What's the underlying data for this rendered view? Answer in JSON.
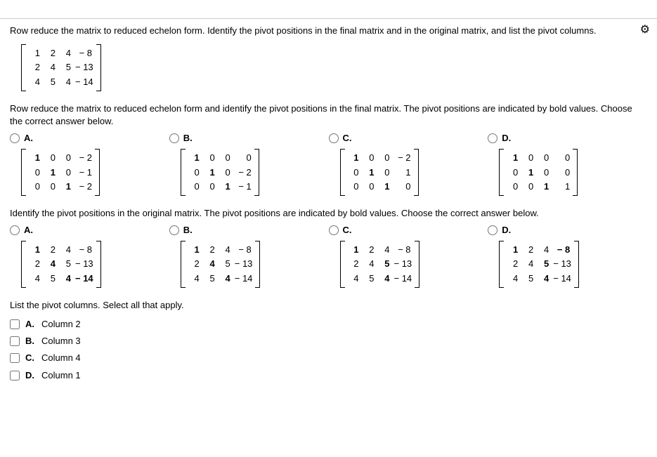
{
  "gear_icon": "⚙",
  "q1_text": "Row reduce the matrix to reduced echelon form. Identify the pivot positions in the final matrix and in the original matrix, and list the pivot columns.",
  "matrix_main": {
    "rows": [
      [
        "1",
        "2",
        "4",
        "− 8"
      ],
      [
        "2",
        "4",
        "5",
        "− 13"
      ],
      [
        "4",
        "5",
        "4",
        "− 14"
      ]
    ]
  },
  "q2_text": "Row reduce the matrix to reduced echelon form and identify the pivot positions in the final matrix. The pivot positions are indicated by bold values. Choose the correct answer below.",
  "opts1": {
    "A": {
      "label": "A.",
      "rows": [
        [
          {
            "v": "1",
            "b": 1
          },
          {
            "v": "0"
          },
          {
            "v": "0"
          },
          {
            "v": "− 2"
          }
        ],
        [
          {
            "v": "0"
          },
          {
            "v": "1",
            "b": 1
          },
          {
            "v": "0"
          },
          {
            "v": "− 1"
          }
        ],
        [
          {
            "v": "0"
          },
          {
            "v": "0"
          },
          {
            "v": "1",
            "b": 1
          },
          {
            "v": "− 2"
          }
        ]
      ]
    },
    "B": {
      "label": "B.",
      "rows": [
        [
          {
            "v": "1",
            "b": 1
          },
          {
            "v": "0"
          },
          {
            "v": "0"
          },
          {
            "v": "0"
          }
        ],
        [
          {
            "v": "0"
          },
          {
            "v": "1",
            "b": 1
          },
          {
            "v": "0"
          },
          {
            "v": "− 2"
          }
        ],
        [
          {
            "v": "0"
          },
          {
            "v": "0"
          },
          {
            "v": "1",
            "b": 1
          },
          {
            "v": "− 1"
          }
        ]
      ]
    },
    "C": {
      "label": "C.",
      "rows": [
        [
          {
            "v": "1",
            "b": 1
          },
          {
            "v": "0"
          },
          {
            "v": "0"
          },
          {
            "v": "− 2"
          }
        ],
        [
          {
            "v": "0"
          },
          {
            "v": "1",
            "b": 1
          },
          {
            "v": "0"
          },
          {
            "v": "1"
          }
        ],
        [
          {
            "v": "0"
          },
          {
            "v": "0"
          },
          {
            "v": "1",
            "b": 1
          },
          {
            "v": "0"
          }
        ]
      ]
    },
    "D": {
      "label": "D.",
      "rows": [
        [
          {
            "v": "1",
            "b": 1
          },
          {
            "v": "0"
          },
          {
            "v": "0"
          },
          {
            "v": "0"
          }
        ],
        [
          {
            "v": "0"
          },
          {
            "v": "1",
            "b": 1
          },
          {
            "v": "0"
          },
          {
            "v": "0"
          }
        ],
        [
          {
            "v": "0"
          },
          {
            "v": "0"
          },
          {
            "v": "1",
            "b": 1
          },
          {
            "v": "1"
          }
        ]
      ]
    }
  },
  "q3_text": "Identify the pivot positions in the original matrix. The pivot positions are indicated by bold values. Choose the correct answer below.",
  "opts2": {
    "A": {
      "label": "A.",
      "rows": [
        [
          {
            "v": "1",
            "b": 1
          },
          {
            "v": "2"
          },
          {
            "v": "4"
          },
          {
            "v": "− 8"
          }
        ],
        [
          {
            "v": "2"
          },
          {
            "v": "4",
            "b": 1
          },
          {
            "v": "5"
          },
          {
            "v": "− 13"
          }
        ],
        [
          {
            "v": "4"
          },
          {
            "v": "5"
          },
          {
            "v": "4",
            "b": 1
          },
          {
            "v": "− 14",
            "b": 1
          }
        ]
      ]
    },
    "B": {
      "label": "B.",
      "rows": [
        [
          {
            "v": "1",
            "b": 1
          },
          {
            "v": "2"
          },
          {
            "v": "4"
          },
          {
            "v": "− 8"
          }
        ],
        [
          {
            "v": "2"
          },
          {
            "v": "4",
            "b": 1
          },
          {
            "v": "5"
          },
          {
            "v": "− 13"
          }
        ],
        [
          {
            "v": "4"
          },
          {
            "v": "5"
          },
          {
            "v": "4",
            "b": 1
          },
          {
            "v": "− 14"
          }
        ]
      ]
    },
    "C": {
      "label": "C.",
      "rows": [
        [
          {
            "v": "1",
            "b": 1
          },
          {
            "v": "2"
          },
          {
            "v": "4"
          },
          {
            "v": "− 8"
          }
        ],
        [
          {
            "v": "2"
          },
          {
            "v": "4"
          },
          {
            "v": "5",
            "b": 1
          },
          {
            "v": "− 13"
          }
        ],
        [
          {
            "v": "4"
          },
          {
            "v": "5"
          },
          {
            "v": "4",
            "b": 1
          },
          {
            "v": "− 14"
          }
        ]
      ]
    },
    "D": {
      "label": "D.",
      "rows": [
        [
          {
            "v": "1",
            "b": 1
          },
          {
            "v": "2"
          },
          {
            "v": "4"
          },
          {
            "v": "− 8",
            "b": 1
          }
        ],
        [
          {
            "v": "2"
          },
          {
            "v": "4"
          },
          {
            "v": "5",
            "b": 1
          },
          {
            "v": "− 13"
          }
        ],
        [
          {
            "v": "4"
          },
          {
            "v": "5"
          },
          {
            "v": "4",
            "b": 1
          },
          {
            "v": "− 14"
          }
        ]
      ]
    }
  },
  "q4_text": "List the pivot columns. Select all that apply.",
  "checks": {
    "A": {
      "letter": "A.",
      "label": "Column 2"
    },
    "B": {
      "letter": "B.",
      "label": "Column 3"
    },
    "C": {
      "letter": "C.",
      "label": "Column 4"
    },
    "D": {
      "letter": "D.",
      "label": "Column 1"
    }
  }
}
